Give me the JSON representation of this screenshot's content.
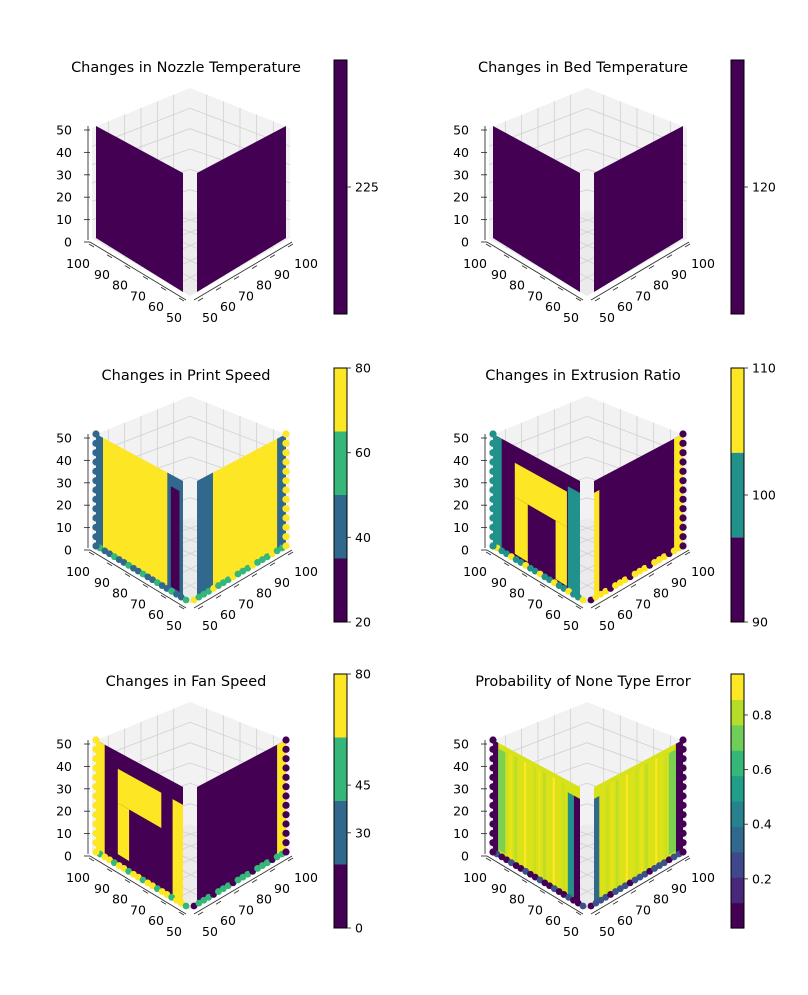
{
  "chart_data": [
    {
      "type": "scatter",
      "title": "Changes in Nozzle Temperature",
      "z_ticks": [
        "0",
        "10",
        "20",
        "30",
        "40",
        "50"
      ],
      "x_ticks": [
        "50",
        "60",
        "70",
        "80",
        "90",
        "100"
      ],
      "y_ticks": [
        "100",
        "90",
        "80",
        "70",
        "60",
        "50"
      ],
      "xlim": [
        50,
        100
      ],
      "ylim": [
        50,
        100
      ],
      "zlim": [
        0,
        50
      ],
      "colorbar": {
        "kind": "discrete",
        "range": [
          224.5,
          225.5
        ],
        "ticks": [
          {
            "value": 225,
            "label": "225"
          }
        ],
        "bands": [
          {
            "from": 224.5,
            "to": 225.5,
            "color": "#440154"
          }
        ]
      },
      "walls": {
        "left": "#440154",
        "right": "#440154"
      },
      "overlays": [],
      "edges": []
    },
    {
      "type": "scatter",
      "title": "Changes in Bed Temperature",
      "z_ticks": [
        "0",
        "10",
        "20",
        "30",
        "40",
        "50"
      ],
      "x_ticks": [
        "50",
        "60",
        "70",
        "80",
        "90",
        "100"
      ],
      "y_ticks": [
        "100",
        "90",
        "80",
        "70",
        "60",
        "50"
      ],
      "xlim": [
        50,
        100
      ],
      "ylim": [
        50,
        100
      ],
      "zlim": [
        0,
        50
      ],
      "colorbar": {
        "kind": "discrete",
        "range": [
          119.5,
          120.5
        ],
        "ticks": [
          {
            "value": 120,
            "label": "120"
          }
        ],
        "bands": [
          {
            "from": 119.5,
            "to": 120.5,
            "color": "#440154"
          }
        ]
      },
      "walls": {
        "left": "#440154",
        "right": "#440154"
      },
      "overlays": [],
      "edges": []
    },
    {
      "type": "scatter",
      "title": "Changes in Print Speed",
      "z_ticks": [
        "0",
        "10",
        "20",
        "30",
        "40",
        "50"
      ],
      "x_ticks": [
        "50",
        "60",
        "70",
        "80",
        "90",
        "100"
      ],
      "y_ticks": [
        "100",
        "90",
        "80",
        "70",
        "60",
        "50"
      ],
      "xlim": [
        50,
        100
      ],
      "ylim": [
        50,
        100
      ],
      "zlim": [
        0,
        50
      ],
      "colorbar": {
        "kind": "discrete",
        "range": [
          20,
          80
        ],
        "ticks": [
          {
            "value": 20,
            "label": "20"
          },
          {
            "value": 40,
            "label": "40"
          },
          {
            "value": 60,
            "label": "60"
          },
          {
            "value": 80,
            "label": "80"
          }
        ],
        "bands": [
          {
            "from": 20,
            "to": 35,
            "color": "#440154"
          },
          {
            "from": 35,
            "to": 50,
            "color": "#31688e"
          },
          {
            "from": 50,
            "to": 65,
            "color": "#35b779"
          },
          {
            "from": 65,
            "to": 80,
            "color": "#fde725"
          }
        ]
      },
      "walls": {
        "left": "#fde725",
        "right": "#fde725"
      },
      "overlays": [
        {
          "wall": "left",
          "u0": 0.0,
          "u1": 0.08,
          "v0": 0.0,
          "v1": 1.0,
          "color": "#31688e"
        },
        {
          "wall": "left",
          "u0": 0.82,
          "u1": 1.0,
          "v0": 0.0,
          "v1": 1.0,
          "color": "#31688e"
        },
        {
          "wall": "right",
          "u0": 0.0,
          "u1": 0.18,
          "v0": 0.0,
          "v1": 1.0,
          "color": "#31688e"
        },
        {
          "wall": "right",
          "u0": 0.9,
          "u1": 1.0,
          "v0": 0.0,
          "v1": 1.0,
          "color": "#31688e"
        },
        {
          "wall": "left",
          "u0": 0.86,
          "u1": 0.96,
          "v0": 0.05,
          "v1": 0.9,
          "color": "#440154"
        }
      ],
      "edges": [
        "#31688e",
        "#35b779",
        "#fde725"
      ]
    },
    {
      "type": "scatter",
      "title": "Changes in Extrusion Ratio",
      "z_ticks": [
        "0",
        "10",
        "20",
        "30",
        "40",
        "50"
      ],
      "x_ticks": [
        "50",
        "60",
        "70",
        "80",
        "90",
        "100"
      ],
      "y_ticks": [
        "100",
        "90",
        "80",
        "70",
        "60",
        "50"
      ],
      "xlim": [
        50,
        100
      ],
      "ylim": [
        50,
        100
      ],
      "zlim": [
        0,
        50
      ],
      "colorbar": {
        "kind": "discrete",
        "range": [
          90,
          110
        ],
        "ticks": [
          {
            "value": 90,
            "label": "90"
          },
          {
            "value": 100,
            "label": "100"
          },
          {
            "value": 110,
            "label": "110"
          }
        ],
        "bands": [
          {
            "from": 90,
            "to": 96.67,
            "color": "#440154"
          },
          {
            "from": 96.67,
            "to": 103.33,
            "color": "#21918c"
          },
          {
            "from": 103.33,
            "to": 110,
            "color": "#fde725"
          }
        ]
      },
      "walls": {
        "left": "#440154",
        "right": "#440154"
      },
      "overlays": [
        {
          "wall": "left",
          "u0": 0.0,
          "u1": 0.1,
          "v0": 0.0,
          "v1": 1.0,
          "color": "#21918c"
        },
        {
          "wall": "left",
          "u0": 0.25,
          "u1": 0.85,
          "v0": 0.55,
          "v1": 0.85,
          "color": "#fde725"
        },
        {
          "wall": "left",
          "u0": 0.25,
          "u1": 0.4,
          "v0": 0.05,
          "v1": 0.55,
          "color": "#fde725"
        },
        {
          "wall": "left",
          "u0": 0.72,
          "u1": 0.85,
          "v0": 0.05,
          "v1": 0.55,
          "color": "#fde725"
        },
        {
          "wall": "left",
          "u0": 0.86,
          "u1": 1.0,
          "v0": 0.0,
          "v1": 0.9,
          "color": "#21918c"
        },
        {
          "wall": "right",
          "u0": 0.0,
          "u1": 0.06,
          "v0": 0.0,
          "v1": 0.9,
          "color": "#fde725"
        },
        {
          "wall": "right",
          "u0": 0.9,
          "u1": 1.0,
          "v0": 0.0,
          "v1": 1.0,
          "color": "#fde725"
        }
      ],
      "edges": [
        "#21918c",
        "#fde725",
        "#440154"
      ]
    },
    {
      "type": "scatter",
      "title": "Changes in Fan Speed",
      "z_ticks": [
        "0",
        "10",
        "20",
        "30",
        "40",
        "50"
      ],
      "x_ticks": [
        "50",
        "60",
        "70",
        "80",
        "90",
        "100"
      ],
      "y_ticks": [
        "100",
        "90",
        "80",
        "70",
        "60",
        "50"
      ],
      "xlim": [
        50,
        100
      ],
      "ylim": [
        50,
        100
      ],
      "zlim": [
        0,
        50
      ],
      "colorbar": {
        "kind": "discrete",
        "range": [
          0,
          80
        ],
        "ticks": [
          {
            "value": 0,
            "label": "0"
          },
          {
            "value": 30,
            "label": "30"
          },
          {
            "value": 45,
            "label": "45"
          },
          {
            "value": 80,
            "label": "80"
          }
        ],
        "bands": [
          {
            "from": 0,
            "to": 20,
            "color": "#440154"
          },
          {
            "from": 20,
            "to": 40,
            "color": "#31688e"
          },
          {
            "from": 40,
            "to": 60,
            "color": "#35b779"
          },
          {
            "from": 60,
            "to": 80,
            "color": "#fde725"
          }
        ]
      },
      "walls": {
        "left": "#440154",
        "right": "#440154"
      },
      "overlays": [
        {
          "wall": "left",
          "u0": 0.0,
          "u1": 0.1,
          "v0": 0.0,
          "v1": 1.0,
          "color": "#fde725"
        },
        {
          "wall": "left",
          "u0": 0.25,
          "u1": 0.75,
          "v0": 0.55,
          "v1": 0.85,
          "color": "#fde725"
        },
        {
          "wall": "left",
          "u0": 0.25,
          "u1": 0.38,
          "v0": 0.1,
          "v1": 0.55,
          "color": "#fde725"
        },
        {
          "wall": "left",
          "u0": 0.88,
          "u1": 1.0,
          "v0": 0.0,
          "v1": 0.85,
          "color": "#fde725"
        },
        {
          "wall": "right",
          "u0": 0.9,
          "u1": 1.0,
          "v0": 0.0,
          "v1": 1.0,
          "color": "#fde725"
        }
      ],
      "edges": [
        "#fde725",
        "#35b779",
        "#440154"
      ]
    },
    {
      "type": "scatter",
      "title": "Probability of None Type Error",
      "z_ticks": [
        "0",
        "10",
        "20",
        "30",
        "40",
        "50"
      ],
      "x_ticks": [
        "50",
        "60",
        "70",
        "80",
        "90",
        "100"
      ],
      "y_ticks": [
        "100",
        "90",
        "80",
        "70",
        "60",
        "50"
      ],
      "xlim": [
        50,
        100
      ],
      "ylim": [
        50,
        100
      ],
      "zlim": [
        0,
        50
      ],
      "colorbar": {
        "kind": "continuous",
        "range": [
          0.02,
          0.95
        ],
        "ticks": [
          {
            "value": 0.2,
            "label": "0.2"
          },
          {
            "value": 0.4,
            "label": "0.4"
          },
          {
            "value": 0.6,
            "label": "0.6"
          },
          {
            "value": 0.8,
            "label": "0.8"
          }
        ],
        "bands": []
      },
      "walls": {
        "left": "#d8e219",
        "right": "#d8e219"
      },
      "overlays": [
        {
          "wall": "left",
          "u0": 0.0,
          "u1": 0.06,
          "v0": 0.0,
          "v1": 1.0,
          "color": "#440154"
        },
        {
          "wall": "left",
          "u0": 0.06,
          "u1": 0.14,
          "v0": 0.05,
          "v1": 0.95,
          "color": "#7ad151"
        },
        {
          "wall": "left",
          "u0": 0.86,
          "u1": 0.93,
          "v0": 0.0,
          "v1": 0.9,
          "color": "#21918c"
        },
        {
          "wall": "left",
          "u0": 0.93,
          "u1": 1.0,
          "v0": 0.0,
          "v1": 0.9,
          "color": "#440154"
        },
        {
          "wall": "right",
          "u0": 0.0,
          "u1": 0.06,
          "v0": 0.0,
          "v1": 0.9,
          "color": "#31688e"
        },
        {
          "wall": "right",
          "u0": 0.92,
          "u1": 1.0,
          "v0": 0.0,
          "v1": 1.0,
          "color": "#440154"
        },
        {
          "wall": "right",
          "u0": 0.84,
          "u1": 0.92,
          "v0": 0.05,
          "v1": 0.95,
          "color": "#7ad151"
        }
      ],
      "edges": [
        "#440154",
        "#3b528b",
        "#440154"
      ]
    }
  ]
}
